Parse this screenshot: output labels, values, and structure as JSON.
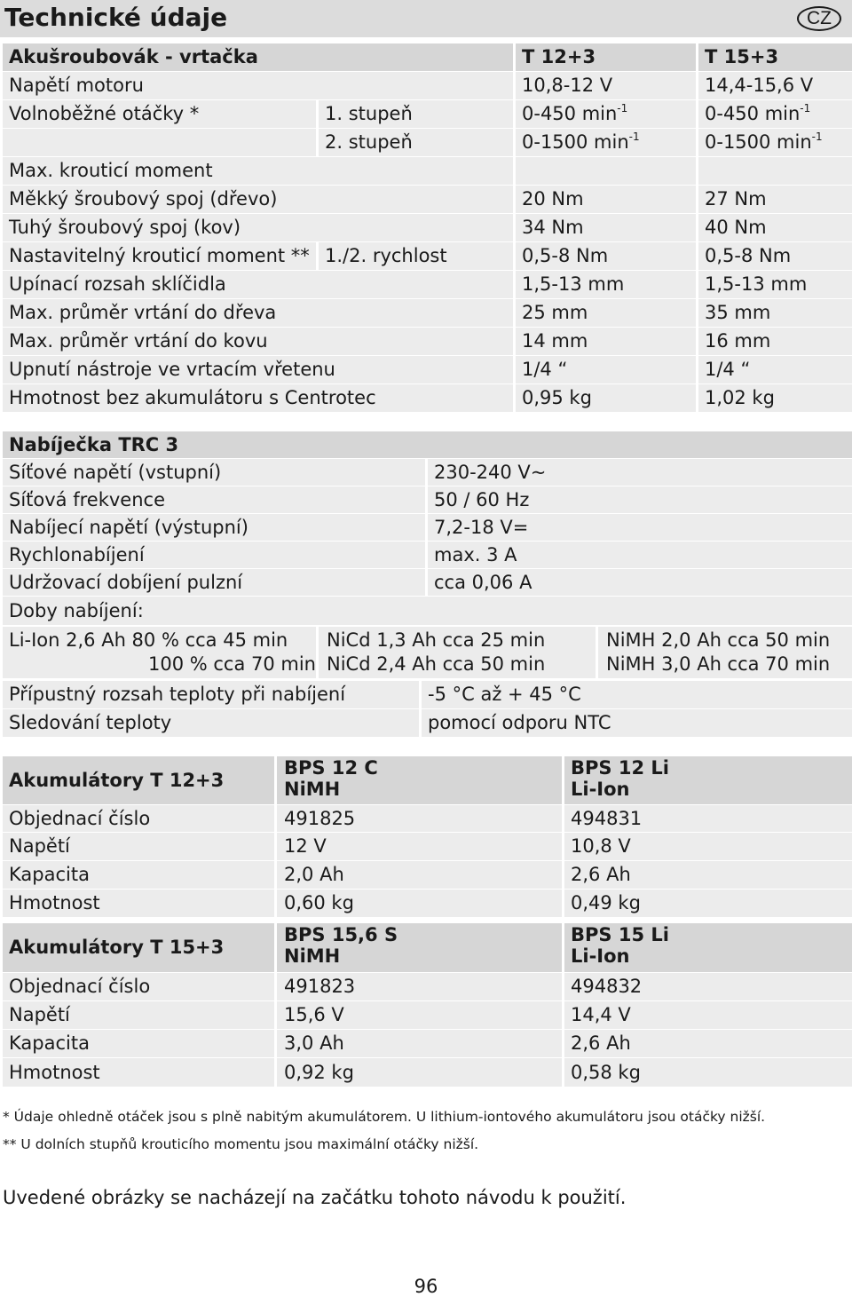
{
  "page": {
    "title": "Technické údaje",
    "lang_badge": "CZ",
    "page_number": "96",
    "note": "Uvedené obrázky se nacházejí na začátku tohoto návodu k použití."
  },
  "drill": {
    "title": "Akušroubovák - vrtačka",
    "col1": "T 12+3",
    "col2": "T 15+3",
    "motor_voltage": {
      "label": "Napětí motoru",
      "v1": "10,8-12 V",
      "v2": "14,4-15,6 V"
    },
    "idle_speed": {
      "label": "Volnoběžné otáčky *",
      "gear1": "1. stupeň",
      "gear1_v1": "0-450 min",
      "gear1_v2": "0-450 min",
      "gear2": "2. stupeň",
      "gear2_v1": "0-1500 min",
      "gear2_v2": "0-1500 min",
      "exponent": "-1"
    },
    "max_torque": {
      "label": "Max. krouticí moment"
    },
    "soft_joint": {
      "label": "Měkký šroubový spoj (dřevo)",
      "v1": "20 Nm",
      "v2": "27 Nm"
    },
    "hard_joint": {
      "label": "Tuhý šroubový spoj (kov)",
      "v1": "34 Nm",
      "v2": "40 Nm"
    },
    "adjustable_torque": {
      "label": "Nastavitelný krouticí moment **",
      "sub": "1./2. rychlost",
      "v1": "0,5-8 Nm",
      "v2": "0,5-8  Nm"
    },
    "chuck_range": {
      "label": "Upínací rozsah sklíčidla",
      "v1": "1,5-13 mm",
      "v2": "1,5-13 mm"
    },
    "drill_wood": {
      "label": "Max. průměr vrtání do dřeva",
      "v1": "25 mm",
      "v2": "35 mm"
    },
    "drill_metal": {
      "label": "Max. průměr vrtání do kovu",
      "v1": "14 mm",
      "v2": "16 mm"
    },
    "spindle": {
      "label": "Upnutí nástroje ve vrtacím vřetenu",
      "v1": "1/4 “",
      "v2": "1/4 “"
    },
    "weight": {
      "label": "Hmotnost bez akumulátoru s Centrotec",
      "v1": "0,95 kg",
      "v2": "1,02 kg"
    }
  },
  "charger": {
    "title": "Nabíječka TRC 3",
    "rows": [
      {
        "label": "Síťové napětí (vstupní)",
        "value": "230-240 V~"
      },
      {
        "label": "Síťová frekvence",
        "value": "50 / 60 Hz"
      },
      {
        "label": "Nabíjecí napětí (výstupní)",
        "value": "7,2-18 V="
      },
      {
        "label": "Rychlonabíjení",
        "value": "max. 3 A"
      },
      {
        "label": "Udržovací dobíjení pulzní",
        "value": "cca 0,06 A"
      }
    ],
    "charge_times_label": "Doby nabíjení:",
    "li_line1": "Li-Ion 2,6 Ah  80 % cca 45 min",
    "li_line2": "100 % cca 70 min",
    "nicd_line1": "NiCd 1,3 Ah cca 25 min",
    "nicd_line2": "NiCd 2,4 Ah cca 50 min",
    "nimh_line1": "NiMH 2,0 Ah cca 50 min",
    "nimh_line2": "NiMH 3,0 Ah cca 70 min",
    "temp_range": {
      "label": "Přípustný rozsah teploty při nabíjení",
      "value": "-5 °C až + 45 °C"
    },
    "temp_monitor": {
      "label": "Sledování teploty",
      "value": "pomocí odporu NTC"
    }
  },
  "battery_12": {
    "title": "Akumulátory  T 12+3",
    "c1_line1": "BPS 12 C",
    "c1_line2": "NiMH",
    "c2_line1": "BPS 12 Li",
    "c2_line2": "Li-Ion",
    "rows": [
      {
        "label": "Objednací číslo",
        "v1": "491825",
        "v2": "494831"
      },
      {
        "label": "Napětí",
        "v1": "12 V",
        "v2": "10,8 V"
      },
      {
        "label": "Kapacita",
        "v1": "2,0 Ah",
        "v2": "2,6 Ah"
      },
      {
        "label": "Hmotnost",
        "v1": "0,60 kg",
        "v2": "0,49 kg"
      }
    ]
  },
  "battery_15": {
    "title": "Akumulátory T 15+3",
    "c1_line1": "BPS 15,6 S",
    "c1_line2": "NiMH",
    "c2_line1": "BPS 15 Li",
    "c2_line2": "Li-Ion",
    "rows": [
      {
        "label": "Objednací číslo",
        "v1": "491823",
        "v2": "494832"
      },
      {
        "label": "Napětí",
        "v1": "15,6 V",
        "v2": "14,4 V"
      },
      {
        "label": "Kapacita",
        "v1": "3,0 Ah",
        "v2": "2,6 Ah"
      },
      {
        "label": "Hmotnost",
        "v1": "0,92 kg",
        "v2": "0,58 kg"
      }
    ]
  },
  "footnotes": {
    "f1": "* Údaje ohledně otáček jsou s plně nabitým akumulátorem. U lithium-iontového akumulátoru jsou otáčky nižší.",
    "f2": "** U dolních stupňů krouticího momentu jsou maximální otáčky nižší."
  }
}
